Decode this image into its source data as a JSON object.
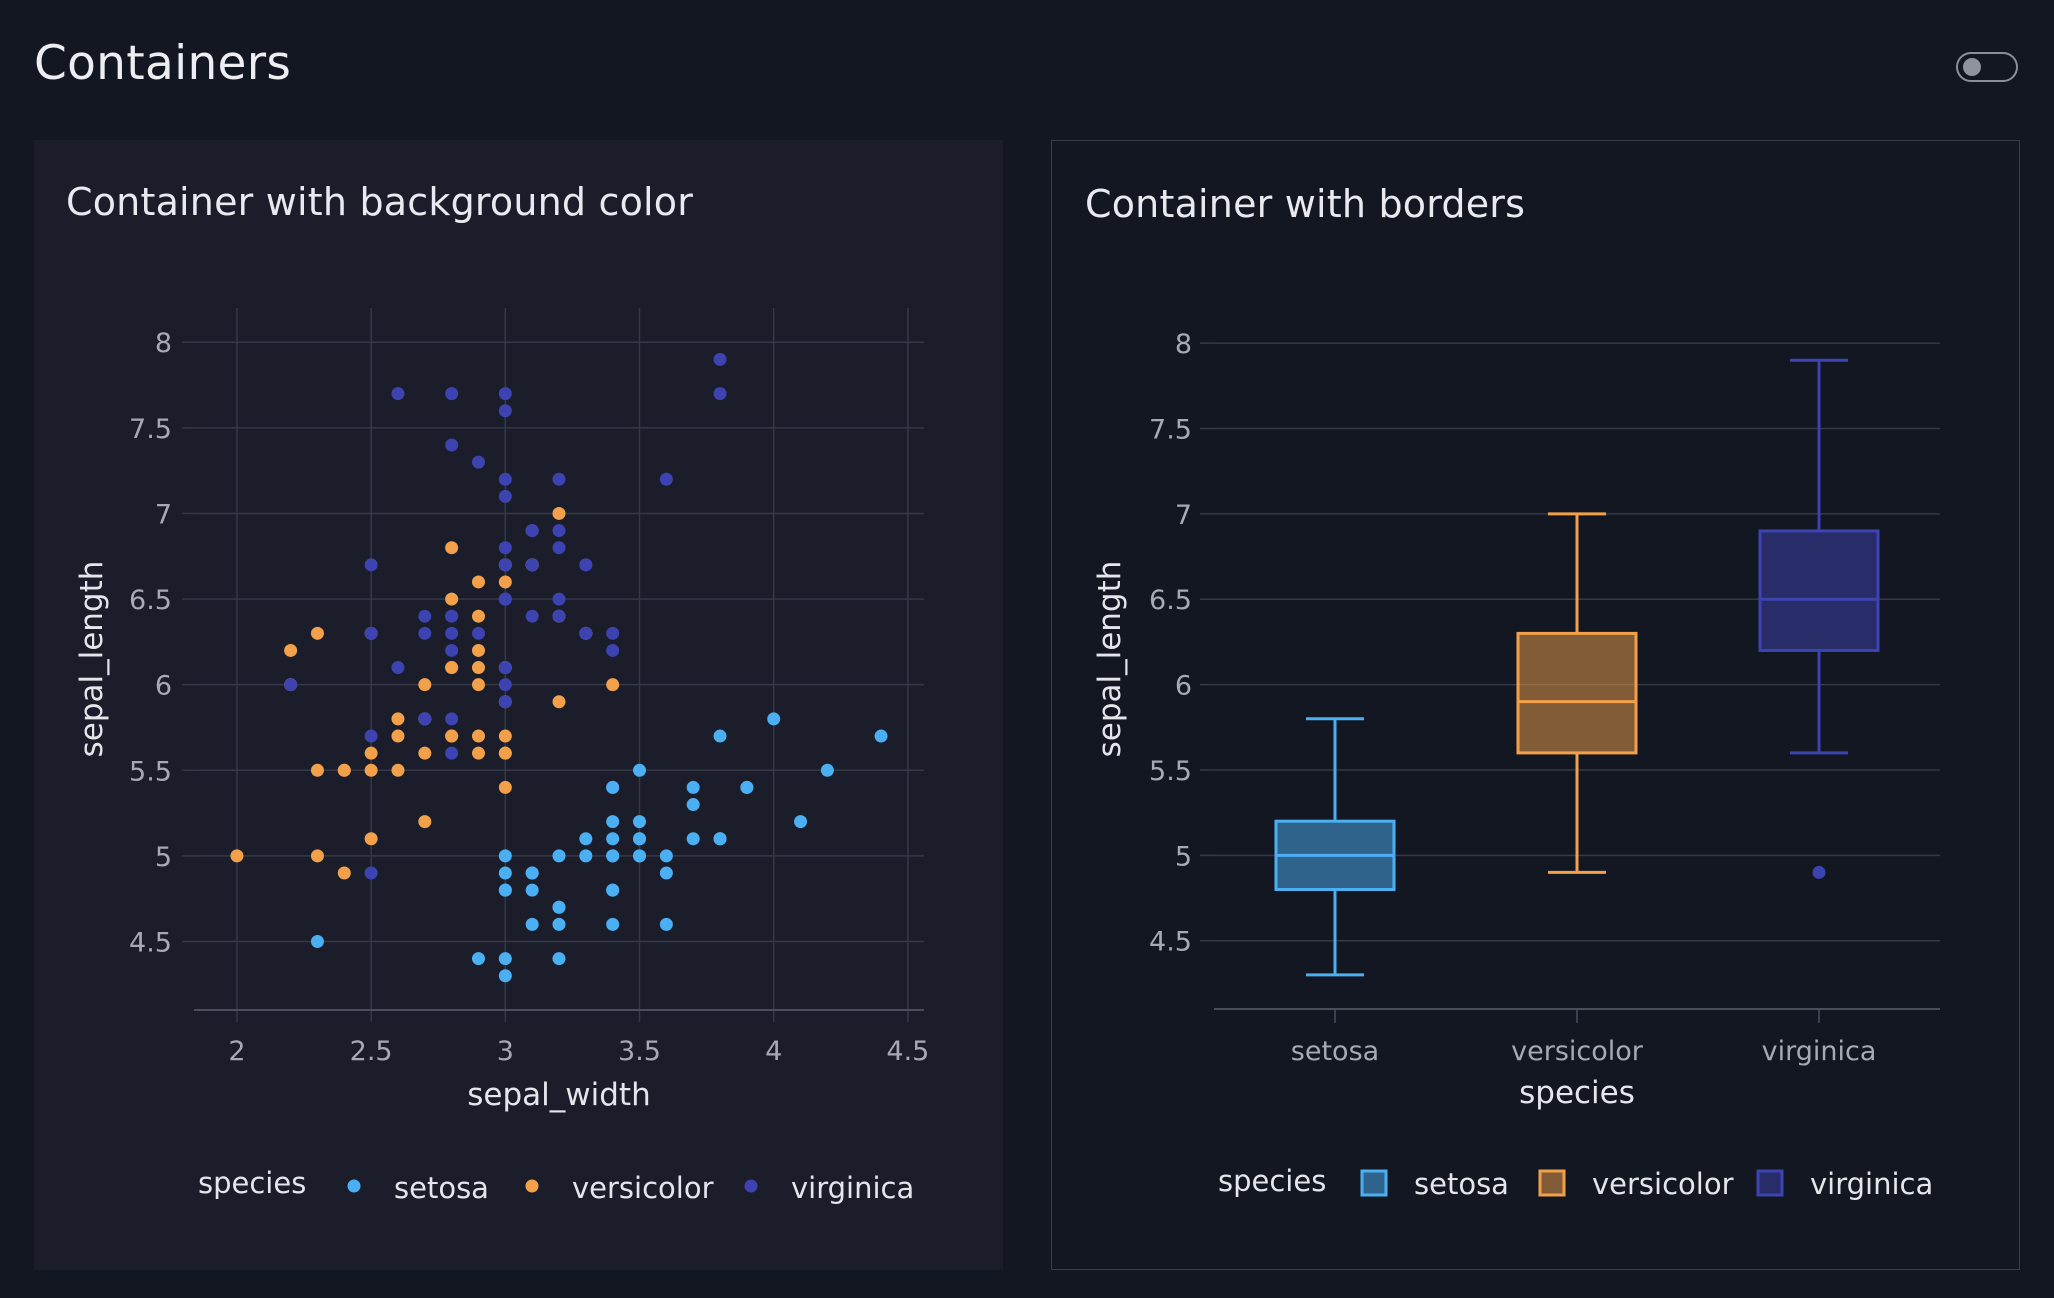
{
  "page": {
    "title": "Containers",
    "toggle_state": "off"
  },
  "cards": [
    {
      "title": "Container with background color",
      "style": "background"
    },
    {
      "title": "Container with borders",
      "style": "border"
    }
  ],
  "colors": {
    "page_bg": "#131722",
    "card_bg": "#1b1e2a",
    "setosa": "#4bb0f3",
    "versicolor": "#f2a14a",
    "virginica": "#3d43b0",
    "grid": "#353947",
    "tick_text": "#a6aab5",
    "label_text": "#e4e6ec"
  },
  "chart_data": [
    {
      "type": "scatter",
      "title": "",
      "xlabel": "sepal_width",
      "ylabel": "sepal_length",
      "xlim": [
        1.84,
        4.56
      ],
      "ylim": [
        4.1,
        8.2
      ],
      "xticks": [
        "2",
        "2.5",
        "3",
        "3.5",
        "4",
        "4.5"
      ],
      "yticks": [
        "4.5",
        "5",
        "5.5",
        "6",
        "6.5",
        "7",
        "7.5",
        "8"
      ],
      "grid": true,
      "legend": {
        "title": "species",
        "position": "bottom",
        "entries": [
          "setosa",
          "versicolor",
          "virginica"
        ]
      },
      "series": [
        {
          "name": "setosa",
          "points": [
            [
              3.5,
              5.1
            ],
            [
              3.0,
              4.9
            ],
            [
              3.2,
              4.7
            ],
            [
              3.1,
              4.6
            ],
            [
              3.6,
              5.0
            ],
            [
              3.9,
              5.4
            ],
            [
              3.4,
              4.6
            ],
            [
              3.4,
              5.0
            ],
            [
              2.9,
              4.4
            ],
            [
              3.1,
              4.9
            ],
            [
              3.7,
              5.4
            ],
            [
              3.4,
              4.8
            ],
            [
              3.0,
              4.8
            ],
            [
              3.0,
              4.3
            ],
            [
              4.0,
              5.8
            ],
            [
              4.4,
              5.7
            ],
            [
              3.9,
              5.4
            ],
            [
              3.5,
              5.1
            ],
            [
              3.8,
              5.7
            ],
            [
              3.8,
              5.1
            ],
            [
              3.4,
              5.4
            ],
            [
              3.7,
              5.1
            ],
            [
              3.6,
              4.6
            ],
            [
              3.3,
              5.1
            ],
            [
              3.4,
              4.8
            ],
            [
              3.0,
              5.0
            ],
            [
              3.4,
              5.0
            ],
            [
              3.5,
              5.2
            ],
            [
              3.4,
              5.2
            ],
            [
              3.2,
              4.7
            ],
            [
              3.1,
              4.8
            ],
            [
              3.4,
              5.4
            ],
            [
              4.1,
              5.2
            ],
            [
              4.2,
              5.5
            ],
            [
              3.1,
              4.9
            ],
            [
              3.2,
              5.0
            ],
            [
              3.5,
              5.5
            ],
            [
              3.6,
              4.9
            ],
            [
              3.0,
              4.4
            ],
            [
              3.4,
              5.1
            ],
            [
              3.5,
              5.0
            ],
            [
              2.3,
              4.5
            ],
            [
              3.2,
              4.4
            ],
            [
              3.5,
              5.0
            ],
            [
              3.8,
              5.1
            ],
            [
              3.0,
              4.8
            ],
            [
              3.8,
              5.1
            ],
            [
              3.2,
              4.6
            ],
            [
              3.7,
              5.3
            ],
            [
              3.3,
              5.0
            ]
          ]
        },
        {
          "name": "versicolor",
          "points": [
            [
              3.2,
              7.0
            ],
            [
              3.2,
              6.4
            ],
            [
              3.1,
              6.9
            ],
            [
              2.3,
              5.5
            ],
            [
              2.8,
              6.5
            ],
            [
              2.8,
              5.7
            ],
            [
              3.3,
              6.3
            ],
            [
              2.4,
              4.9
            ],
            [
              2.9,
              6.6
            ],
            [
              2.7,
              5.2
            ],
            [
              2.0,
              5.0
            ],
            [
              3.0,
              5.9
            ],
            [
              2.2,
              6.0
            ],
            [
              2.9,
              6.1
            ],
            [
              2.9,
              5.6
            ],
            [
              3.1,
              6.7
            ],
            [
              3.0,
              5.6
            ],
            [
              2.7,
              5.8
            ],
            [
              2.2,
              6.2
            ],
            [
              2.5,
              5.6
            ],
            [
              3.2,
              5.9
            ],
            [
              2.8,
              6.1
            ],
            [
              2.5,
              6.3
            ],
            [
              2.8,
              6.1
            ],
            [
              2.9,
              6.4
            ],
            [
              3.0,
              6.6
            ],
            [
              2.8,
              6.8
            ],
            [
              3.0,
              6.7
            ],
            [
              2.9,
              6.0
            ],
            [
              2.6,
              5.7
            ],
            [
              2.4,
              5.5
            ],
            [
              2.4,
              5.5
            ],
            [
              2.7,
              5.8
            ],
            [
              2.7,
              6.0
            ],
            [
              3.0,
              5.4
            ],
            [
              3.4,
              6.0
            ],
            [
              3.1,
              6.7
            ],
            [
              2.3,
              6.3
            ],
            [
              3.0,
              5.6
            ],
            [
              2.5,
              5.5
            ],
            [
              2.6,
              5.5
            ],
            [
              3.0,
              6.1
            ],
            [
              2.6,
              5.8
            ],
            [
              2.3,
              5.0
            ],
            [
              2.7,
              5.6
            ],
            [
              3.0,
              5.7
            ],
            [
              2.9,
              5.7
            ],
            [
              2.9,
              6.2
            ],
            [
              2.5,
              5.1
            ],
            [
              2.8,
              5.7
            ]
          ]
        },
        {
          "name": "virginica",
          "points": [
            [
              3.3,
              6.3
            ],
            [
              2.7,
              5.8
            ],
            [
              3.0,
              7.1
            ],
            [
              2.9,
              6.3
            ],
            [
              3.0,
              6.5
            ],
            [
              3.0,
              7.6
            ],
            [
              2.5,
              4.9
            ],
            [
              2.9,
              7.3
            ],
            [
              2.5,
              6.7
            ],
            [
              3.6,
              7.2
            ],
            [
              3.2,
              6.5
            ],
            [
              2.7,
              6.4
            ],
            [
              3.0,
              6.8
            ],
            [
              2.5,
              5.7
            ],
            [
              2.8,
              5.8
            ],
            [
              3.2,
              6.4
            ],
            [
              3.0,
              6.5
            ],
            [
              3.8,
              7.7
            ],
            [
              2.6,
              7.7
            ],
            [
              2.2,
              6.0
            ],
            [
              3.2,
              6.9
            ],
            [
              2.8,
              5.6
            ],
            [
              2.8,
              7.7
            ],
            [
              2.7,
              6.3
            ],
            [
              3.3,
              6.7
            ],
            [
              3.2,
              7.2
            ],
            [
              2.8,
              6.2
            ],
            [
              3.0,
              6.1
            ],
            [
              2.8,
              6.4
            ],
            [
              3.0,
              7.2
            ],
            [
              2.8,
              7.4
            ],
            [
              3.8,
              7.9
            ],
            [
              2.8,
              6.4
            ],
            [
              2.8,
              6.3
            ],
            [
              2.6,
              6.1
            ],
            [
              3.0,
              7.7
            ],
            [
              3.4,
              6.3
            ],
            [
              3.1,
              6.4
            ],
            [
              3.0,
              6.0
            ],
            [
              3.1,
              6.9
            ],
            [
              3.1,
              6.7
            ],
            [
              3.1,
              6.9
            ],
            [
              2.7,
              5.8
            ],
            [
              3.2,
              6.8
            ],
            [
              3.3,
              6.7
            ],
            [
              3.0,
              6.7
            ],
            [
              2.5,
              6.3
            ],
            [
              3.0,
              6.5
            ],
            [
              3.4,
              6.2
            ],
            [
              3.0,
              5.9
            ]
          ]
        }
      ]
    },
    {
      "type": "box",
      "title": "",
      "xlabel": "species",
      "ylabel": "sepal_length",
      "ylim": [
        4.1,
        8.2
      ],
      "categories": [
        "setosa",
        "versicolor",
        "virginica"
      ],
      "yticks": [
        "4.5",
        "5",
        "5.5",
        "6",
        "6.5",
        "7",
        "7.5",
        "8"
      ],
      "grid": true,
      "legend": {
        "title": "species",
        "position": "bottom",
        "entries": [
          "setosa",
          "versicolor",
          "virginica"
        ]
      },
      "series": [
        {
          "name": "setosa",
          "min": 4.3,
          "q1": 4.8,
          "median": 5.0,
          "q3": 5.2,
          "max": 5.8,
          "outliers": []
        },
        {
          "name": "versicolor",
          "min": 4.9,
          "q1": 5.6,
          "median": 5.9,
          "q3": 6.3,
          "max": 7.0,
          "outliers": []
        },
        {
          "name": "virginica",
          "min": 5.6,
          "q1": 6.2,
          "median": 6.5,
          "q3": 6.9,
          "max": 7.9,
          "outliers": [
            4.9
          ]
        }
      ]
    }
  ]
}
